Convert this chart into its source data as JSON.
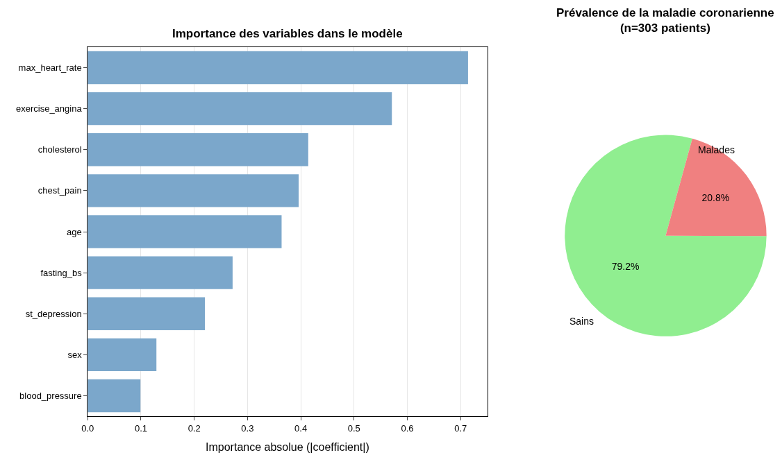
{
  "chart_data": [
    {
      "type": "bar",
      "title": "Importance des variables dans le modèle",
      "xlabel": "Importance absolue (|coefficient|)",
      "orientation": "horizontal",
      "categories": [
        "max_heart_rate",
        "exercise_angina",
        "cholesterol",
        "chest_pain",
        "age",
        "fasting_bs",
        "st_depression",
        "sex",
        "blood_pressure"
      ],
      "values": [
        0.714,
        0.571,
        0.414,
        0.396,
        0.364,
        0.272,
        0.22,
        0.129,
        0.099
      ],
      "color": "#7ba7cb",
      "xlim": [
        0,
        0.75
      ],
      "xticks": [
        {
          "value": 0,
          "label": "0.0"
        },
        {
          "value": 0.1,
          "label": "0.1"
        },
        {
          "value": 0.2,
          "label": "0.2"
        },
        {
          "value": 0.3,
          "label": "0.3"
        },
        {
          "value": 0.4,
          "label": "0.4"
        },
        {
          "value": 0.5,
          "label": "0.5"
        },
        {
          "value": 0.6,
          "label": "0.6"
        },
        {
          "value": 0.7,
          "label": "0.7"
        }
      ],
      "grid": "x"
    },
    {
      "type": "pie",
      "title": "Prévalence de la maladie coronarienne\n(n=303 patients)",
      "categories": [
        "Sains",
        "Malades"
      ],
      "values": [
        79.2,
        20.8
      ],
      "colors": [
        "#90ee90",
        "#f08080"
      ],
      "value_labels": [
        "79.2%",
        "20.8%"
      ]
    }
  ]
}
